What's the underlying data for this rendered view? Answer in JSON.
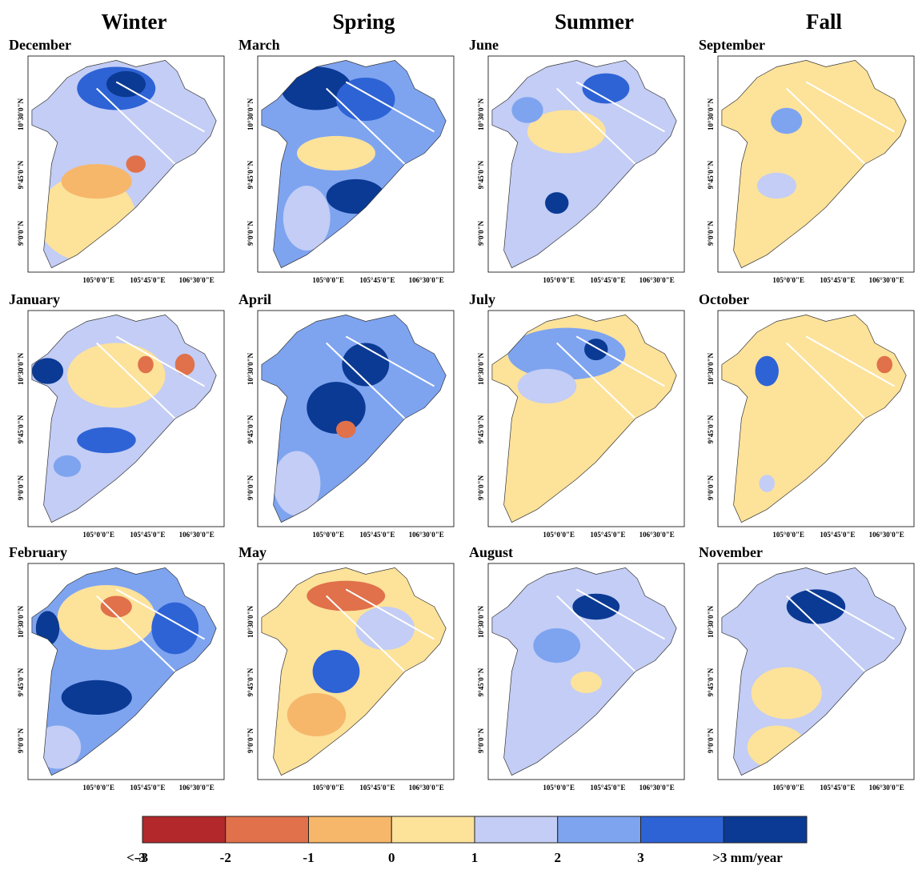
{
  "columns": [
    {
      "season": "Winter",
      "months": [
        "December",
        "January",
        "February"
      ]
    },
    {
      "season": "Spring",
      "months": [
        "March",
        "April",
        "May"
      ]
    },
    {
      "season": "Summer",
      "months": [
        "June",
        "July",
        "August"
      ]
    },
    {
      "season": "Fall",
      "months": [
        "September",
        "October",
        "November"
      ]
    }
  ],
  "lat_labels": [
    "10°30'0\"N",
    "9°45'0\"N",
    "9°0'0\"N"
  ],
  "lon_labels": [
    "105°0'0\"E",
    "105°45'0\"E",
    "106°30'0\"E"
  ],
  "legend": {
    "labels": [
      "<-3",
      "-3",
      "-2",
      "-1",
      "0",
      "1",
      "2",
      "3",
      ">3 mm/year"
    ],
    "colors": [
      "#b2282b",
      "#e0714a",
      "#f6b76b",
      "#fde29a",
      "#c3cdf5",
      "#7ea4f0",
      "#2e63d6",
      "#0b3a94"
    ]
  }
}
